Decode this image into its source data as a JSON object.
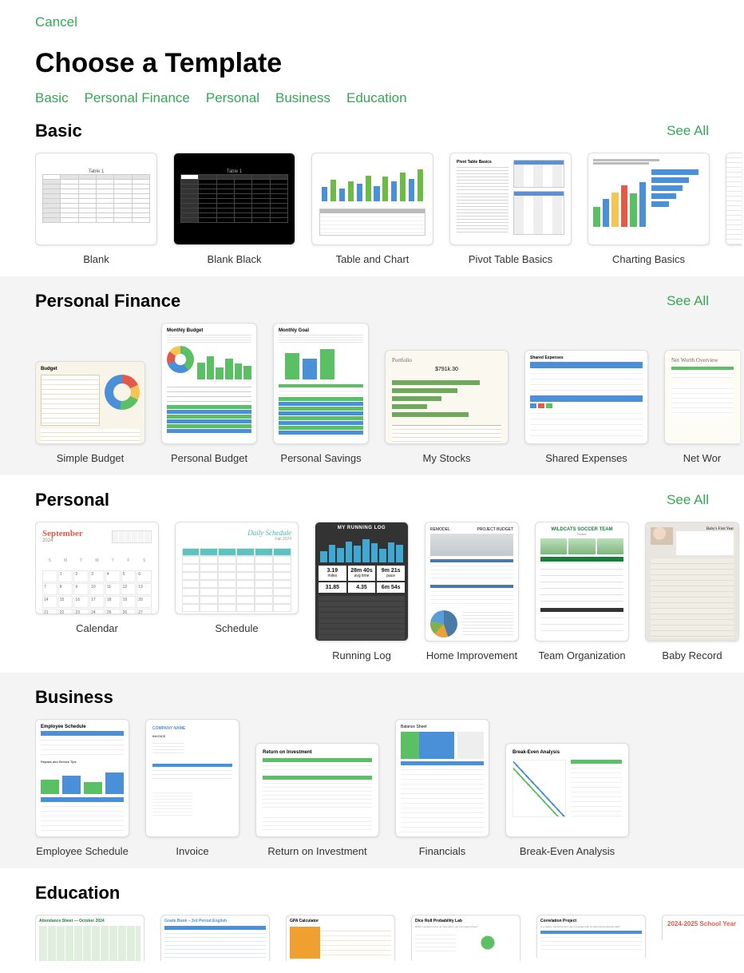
{
  "cancel": "Cancel",
  "title": "Choose a Template",
  "tabs": [
    "Basic",
    "Personal Finance",
    "Personal",
    "Business",
    "Education"
  ],
  "colors": {
    "accent": "#34a853",
    "blue": "#4a90d9",
    "green": "#5bbf63",
    "orange": "#f0a030",
    "red": "#e25b4a"
  },
  "sections": {
    "basic": {
      "title": "Basic",
      "see_all": "See All",
      "items": [
        {
          "label": "Blank"
        },
        {
          "label": "Blank Black"
        },
        {
          "label": "Table and Chart",
          "bars": [
            40,
            60,
            35,
            55,
            48,
            72,
            42,
            68,
            55,
            80,
            62,
            88
          ],
          "bar_colors": [
            "b",
            "g"
          ]
        },
        {
          "label": "Pivot Table Basics",
          "heading": "Pivot Table Basics"
        },
        {
          "label": "Charting Basics",
          "vbar_heights": [
            35,
            48,
            60,
            72,
            58,
            78
          ],
          "vbar_colors": [
            "#5bbf63",
            "#4a90d9",
            "#f6c453",
            "#e25b4a",
            "#5bbf63",
            "#4a90d9"
          ],
          "hbars": [
            90,
            72,
            60,
            48,
            34
          ]
        }
      ]
    },
    "pf": {
      "title": "Personal Finance",
      "see_all": "See All",
      "items": [
        {
          "label": "Simple Budget",
          "heading": "Budget"
        },
        {
          "label": "Personal Budget",
          "heading": "Monthly Budget",
          "mb": [
            50,
            70,
            35,
            62,
            48,
            40
          ]
        },
        {
          "label": "Personal Savings",
          "heading": "Monthly Goal",
          "bars": [
            78,
            62,
            90
          ]
        },
        {
          "label": "My Stocks",
          "heading": "Portfolio",
          "value": "$791k.30",
          "hbars": [
            80,
            60,
            45,
            32,
            70
          ]
        },
        {
          "label": "Shared Expenses",
          "heading": "Shared Expenses"
        },
        {
          "label": "Net Wor",
          "heading": "Net Worth Overview"
        }
      ]
    },
    "personal": {
      "title": "Personal",
      "see_all": "See All",
      "items": [
        {
          "label": "Calendar",
          "month": "September",
          "year": "2024"
        },
        {
          "label": "Schedule",
          "heading": "Daily Schedule",
          "sub": "Fall 2024"
        },
        {
          "label": "Running Log",
          "heading": "MY RUNNING LOG",
          "bars": [
            40,
            62,
            50,
            72,
            58,
            80,
            66,
            48,
            70,
            60
          ],
          "metrics": [
            {
              "v": "3.19",
              "u": "miles"
            },
            {
              "v": "28m 40s",
              "u": "avg time"
            },
            {
              "v": "9m 21s",
              "u": "pace"
            },
            {
              "v": "31.85",
              "u": ""
            },
            {
              "v": "4.35",
              "u": ""
            },
            {
              "v": "6m 54s",
              "u": ""
            }
          ]
        },
        {
          "label": "Home Improvement",
          "h1": "REMODEL",
          "h2": "PROJECT BUDGET"
        },
        {
          "label": "Team Organization",
          "heading": "WILDCATS SOCCER TEAM",
          "sub": "Roster"
        },
        {
          "label": "Baby Record",
          "heading": "Baby's First Year"
        }
      ]
    },
    "business": {
      "title": "Business",
      "items": [
        {
          "label": "Employee Schedule",
          "heading": "Employee Schedule",
          "bars": [
            52,
            68,
            44,
            78
          ]
        },
        {
          "label": "Invoice",
          "heading": "COMPANY NAME",
          "sub": "INVOICE"
        },
        {
          "label": "Return on Investment",
          "heading": "Return on Investment"
        },
        {
          "label": "Financials",
          "heading": "Balance Sheet"
        },
        {
          "label": "Break-Even Analysis",
          "heading": "Break-Even Analysis"
        }
      ]
    },
    "education": {
      "title": "Education",
      "items": [
        {
          "heading": "Attendance Sheet — October 2024"
        },
        {
          "heading": "Grade Book – 3rd Period English"
        },
        {
          "heading": "GPA Calculator"
        },
        {
          "heading": "Dice Roll Probability Lab"
        },
        {
          "heading": "Correlation Project"
        },
        {
          "heading": "2024-2025 School Year"
        }
      ]
    }
  }
}
